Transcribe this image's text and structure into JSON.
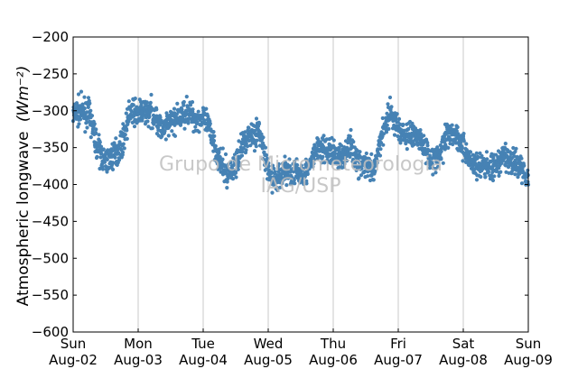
{
  "chart_data": {
    "type": "scatter",
    "title": "",
    "ylabel": "Atmospheric longwave",
    "ylabel_unit": "(Wm⁻²)",
    "ylim": [
      -600,
      -200
    ],
    "yticks": [
      -200,
      -250,
      -300,
      -350,
      -400,
      -450,
      -500,
      -550,
      -600
    ],
    "xlim_days": [
      0,
      7
    ],
    "xticks": [
      {
        "day": "Sun",
        "date": "Aug-02"
      },
      {
        "day": "Mon",
        "date": "Aug-03"
      },
      {
        "day": "Tue",
        "date": "Aug-04"
      },
      {
        "day": "Wed",
        "date": "Aug-05"
      },
      {
        "day": "Thu",
        "date": "Aug-06"
      },
      {
        "day": "Fri",
        "date": "Aug-07"
      },
      {
        "day": "Sat",
        "date": "Aug-08"
      },
      {
        "day": "Sun",
        "date": "Aug-09"
      }
    ],
    "grid": "vertical",
    "marker_color": "#4682b4",
    "series": [
      {
        "values_by_hour": [
          [
            0,
            -305
          ],
          [
            3,
            -300
          ],
          [
            6,
            -305
          ],
          [
            9,
            -350
          ],
          [
            12,
            -370
          ],
          [
            15,
            -360
          ],
          [
            18,
            -345
          ],
          [
            21,
            -300
          ],
          [
            24,
            -305
          ],
          [
            27,
            -300
          ],
          [
            30,
            -305
          ],
          [
            33,
            -330
          ],
          [
            36,
            -315
          ],
          [
            39,
            -310
          ],
          [
            42,
            -300
          ],
          [
            45,
            -310
          ],
          [
            48,
            -310
          ],
          [
            51,
            -330
          ],
          [
            54,
            -370
          ],
          [
            57,
            -385
          ],
          [
            60,
            -375
          ],
          [
            63,
            -340
          ],
          [
            66,
            -330
          ],
          [
            69,
            -330
          ],
          [
            72,
            -385
          ],
          [
            75,
            -395
          ],
          [
            78,
            -380
          ],
          [
            81,
            -385
          ],
          [
            84,
            -385
          ],
          [
            87,
            -380
          ],
          [
            90,
            -350
          ],
          [
            93,
            -355
          ],
          [
            96,
            -355
          ],
          [
            99,
            -365
          ],
          [
            102,
            -345
          ],
          [
            105,
            -370
          ],
          [
            108,
            -375
          ],
          [
            111,
            -385
          ],
          [
            114,
            -330
          ],
          [
            117,
            -300
          ],
          [
            120,
            -325
          ],
          [
            123,
            -335
          ],
          [
            126,
            -330
          ],
          [
            129,
            -345
          ],
          [
            132,
            -365
          ],
          [
            135,
            -365
          ],
          [
            138,
            -330
          ],
          [
            141,
            -330
          ],
          [
            144,
            -350
          ],
          [
            147,
            -370
          ],
          [
            150,
            -375
          ],
          [
            153,
            -375
          ],
          [
            156,
            -380
          ],
          [
            159,
            -360
          ],
          [
            162,
            -370
          ],
          [
            165,
            -375
          ],
          [
            168,
            -390
          ]
        ]
      }
    ],
    "watermark": [
      "Grupo de Micrometeorologia",
      "IAG/USP"
    ]
  }
}
